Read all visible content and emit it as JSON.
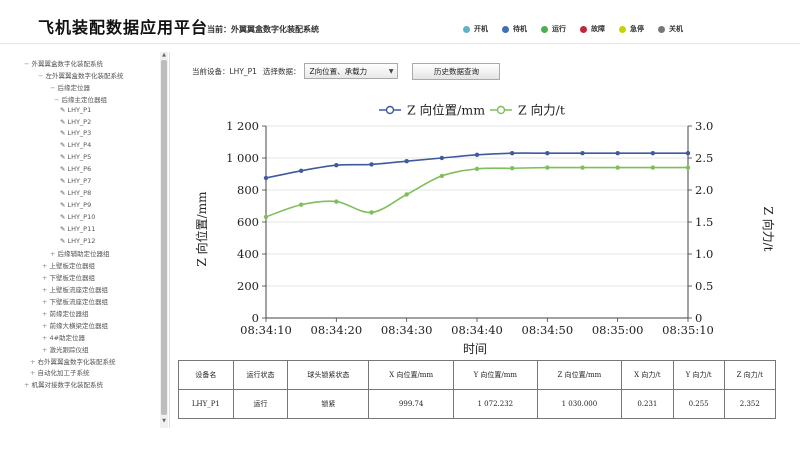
{
  "header": {
    "app_title": "飞机装配数据应用平台",
    "current_system": "当前：外翼翼盒数字化装配系统",
    "status_legend": [
      {
        "label": "开机",
        "color": "#5bb4c8"
      },
      {
        "label": "待机",
        "color": "#3f6fb4"
      },
      {
        "label": "运行",
        "color": "#4caf50"
      },
      {
        "label": "故障",
        "color": "#c0273a"
      },
      {
        "label": "急停",
        "color": "#c8d400"
      },
      {
        "label": "关机",
        "color": "#777777"
      }
    ]
  },
  "sidebar": {
    "items": [
      {
        "toggle": "−",
        "label": "外翼翼盒数字化装配系统"
      },
      {
        "toggle": "−",
        "label": "左外翼翼盒数字化装配系统"
      },
      {
        "toggle": "−",
        "label": "后缘定位器"
      },
      {
        "toggle": "−",
        "label": "后缘主定位器组"
      },
      {
        "toggle": "",
        "label": "LHY_P1"
      },
      {
        "toggle": "",
        "label": "LHY_P2"
      },
      {
        "toggle": "",
        "label": "LHY_P3"
      },
      {
        "toggle": "",
        "label": "LHY_P4"
      },
      {
        "toggle": "",
        "label": "LHY_P5"
      },
      {
        "toggle": "",
        "label": "LHY_P6"
      },
      {
        "toggle": "",
        "label": "LHY_P7"
      },
      {
        "toggle": "",
        "label": "LHY_P8"
      },
      {
        "toggle": "",
        "label": "LHY_P9"
      },
      {
        "toggle": "",
        "label": "LHY_P10"
      },
      {
        "toggle": "",
        "label": "LHY_P11"
      },
      {
        "toggle": "",
        "label": "LHY_P12"
      },
      {
        "toggle": "+",
        "label": "后缘辅助定位器组"
      },
      {
        "toggle": "+",
        "label": "上壁板定位器组"
      },
      {
        "toggle": "+",
        "label": "下壁板定位器组"
      },
      {
        "toggle": "+",
        "label": "上壁板流座定位器组"
      },
      {
        "toggle": "+",
        "label": "下壁板流座定位器组"
      },
      {
        "toggle": "+",
        "label": "前缘定位器组"
      },
      {
        "toggle": "+",
        "label": "前缘大横梁定位器组"
      },
      {
        "toggle": "+",
        "label": "4#助定位器"
      },
      {
        "toggle": "+",
        "label": "激光跟踪仪组"
      },
      {
        "toggle": "+",
        "label": "右外翼翼盒数字化装配系统"
      },
      {
        "toggle": "+",
        "label": "自动化加工子系统"
      },
      {
        "toggle": "+",
        "label": "机翼对接数字化装配系统"
      }
    ]
  },
  "controls": {
    "device_label": "当前设备：LHY_P1",
    "select_label": "选择数据：",
    "select_value": "Z向位置、承载力",
    "history_button": "历史数据查询"
  },
  "chart_data": {
    "type": "line",
    "xlabel": "时间",
    "ylabel_left": "Z 向位置/mm",
    "ylabel_right": "Z 向力/t",
    "x_ticks": [
      "08:34:10",
      "08:34:20",
      "08:34:30",
      "08:34:40",
      "08:34:50",
      "08:35:00",
      "08:35:10"
    ],
    "x_range_seconds": [
      0,
      60
    ],
    "y_left_range": [
      0,
      1200
    ],
    "y_left_ticks": [
      "0",
      "200",
      "400",
      "600",
      "800",
      "1 000",
      "1 200"
    ],
    "y_right_range": [
      0,
      3.0
    ],
    "y_right_ticks": [
      "0",
      "0.5",
      "1.0",
      "1.5",
      "2.0",
      "2.5",
      "3.0"
    ],
    "legend_position": "top",
    "series": [
      {
        "name": "Z 向位置/mm",
        "axis": "left",
        "color": "#3f5a9e",
        "x": [
          0,
          5,
          10,
          15,
          20,
          25,
          30,
          35,
          40,
          45,
          50,
          55,
          60
        ],
        "y": [
          875,
          920,
          955,
          960,
          980,
          1000,
          1020,
          1030,
          1030,
          1030,
          1030,
          1030,
          1030
        ]
      },
      {
        "name": "Z 向力/t",
        "axis": "right",
        "color": "#7fbf5a",
        "x": [
          0,
          5,
          10,
          15,
          20,
          25,
          30,
          35,
          40,
          45,
          50,
          55,
          60
        ],
        "y": [
          1.58,
          1.77,
          1.82,
          1.65,
          1.93,
          2.22,
          2.33,
          2.34,
          2.35,
          2.35,
          2.35,
          2.35,
          2.35
        ]
      }
    ]
  },
  "table": {
    "headers": [
      "设备名",
      "运行状态",
      "球头锁紧状态",
      "X 向位置/mm",
      "Y 向位置/mm",
      "Z 向位置/mm",
      "X 向力/t",
      "Y 向力/t",
      "Z 向力/t"
    ],
    "rows": [
      [
        "LHY_P1",
        "运行",
        "锁紧",
        "999.74",
        "1 072.232",
        "1 030.000",
        "0.231",
        "0.255",
        "2.352"
      ]
    ]
  }
}
